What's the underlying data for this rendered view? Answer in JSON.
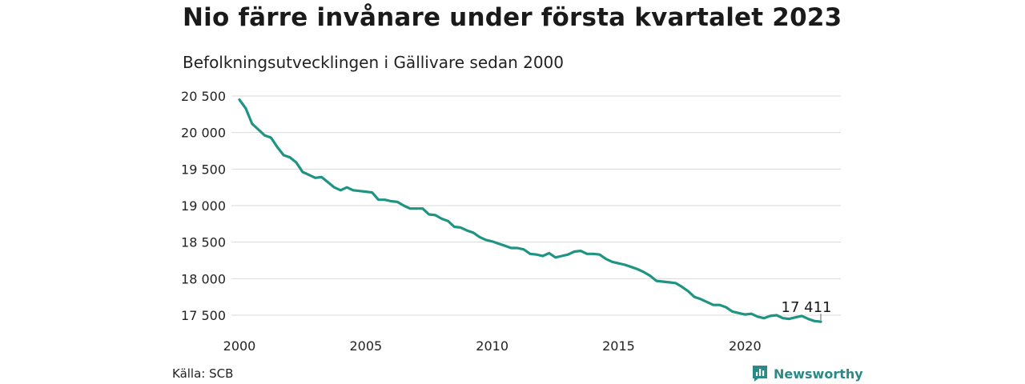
{
  "header": {
    "title": "Nio färre invånare under första kvartalet 2023",
    "subtitle": "Befolkningsutvecklingen i Gällivare sedan 2000"
  },
  "footer": {
    "source": "Källa: SCB",
    "brand": "Newsworthy",
    "brand_icon": "bar-chart-speech-bubble-icon"
  },
  "colors": {
    "line": "#1f9483",
    "grid": "#d9d9d9",
    "brand": "#2b8a85"
  },
  "chart_data": {
    "type": "line",
    "title": "Nio färre invånare under första kvartalet 2023",
    "subtitle": "Befolkningsutvecklingen i Gällivare sedan 2000",
    "xlim": [
      2000,
      2023.5
    ],
    "ylim": [
      17411,
      20500
    ],
    "x_ticks": [
      2000,
      2005,
      2010,
      2015,
      2020
    ],
    "y_ticks": [
      17500,
      18000,
      18500,
      19000,
      19500,
      20000,
      20500
    ],
    "y_tick_labels": [
      "17 500",
      "18 000",
      "18 500",
      "19 000",
      "19 500",
      "20 000",
      "20 500"
    ],
    "grid": true,
    "annotation": {
      "x": 2023.0,
      "y": 17411,
      "label": "17 411"
    },
    "series": [
      {
        "x": [
          2000.0,
          2000.25,
          2000.5,
          2000.75,
          2001.0,
          2001.25,
          2001.5,
          2001.75,
          2002.0,
          2002.25,
          2002.5,
          2002.75,
          2003.0,
          2003.25,
          2003.5,
          2003.75,
          2004.0,
          2004.25,
          2004.5,
          2004.75,
          2005.0,
          2005.25,
          2005.5,
          2005.75,
          2006.0,
          2006.25,
          2006.5,
          2006.75,
          2007.0,
          2007.25,
          2007.5,
          2007.75,
          2008.0,
          2008.25,
          2008.5,
          2008.75,
          2009.0,
          2009.25,
          2009.5,
          2009.75,
          2010.0,
          2010.25,
          2010.5,
          2010.75,
          2011.0,
          2011.25,
          2011.5,
          2011.75,
          2012.0,
          2012.25,
          2012.5,
          2012.75,
          2013.0,
          2013.25,
          2013.5,
          2013.75,
          2014.0,
          2014.25,
          2014.5,
          2014.75,
          2015.0,
          2015.25,
          2015.5,
          2015.75,
          2016.0,
          2016.25,
          2016.5,
          2016.75,
          2017.0,
          2017.25,
          2017.5,
          2017.75,
          2018.0,
          2018.25,
          2018.5,
          2018.75,
          2019.0,
          2019.25,
          2019.5,
          2019.75,
          2020.0,
          2020.25,
          2020.5,
          2020.75,
          2021.0,
          2021.25,
          2021.5,
          2021.75,
          2022.0,
          2022.25,
          2022.5,
          2022.75,
          2023.0
        ],
        "y": [
          20450,
          20330,
          20120,
          20040,
          19960,
          19930,
          19800,
          19690,
          19660,
          19590,
          19460,
          19420,
          19380,
          19390,
          19320,
          19250,
          19210,
          19250,
          19210,
          19200,
          19190,
          19180,
          19080,
          19080,
          19060,
          19050,
          19000,
          18960,
          18960,
          18960,
          18880,
          18870,
          18820,
          18790,
          18710,
          18700,
          18660,
          18630,
          18570,
          18530,
          18510,
          18480,
          18450,
          18420,
          18420,
          18400,
          18340,
          18330,
          18310,
          18350,
          18290,
          18310,
          18330,
          18370,
          18380,
          18340,
          18340,
          18330,
          18270,
          18230,
          18210,
          18190,
          18160,
          18130,
          18090,
          18040,
          17970,
          17960,
          17950,
          17940,
          17890,
          17830,
          17750,
          17720,
          17680,
          17640,
          17640,
          17610,
          17550,
          17530,
          17510,
          17520,
          17480,
          17460,
          17490,
          17500,
          17460,
          17450,
          17470,
          17490,
          17450,
          17420,
          17411
        ]
      }
    ]
  }
}
